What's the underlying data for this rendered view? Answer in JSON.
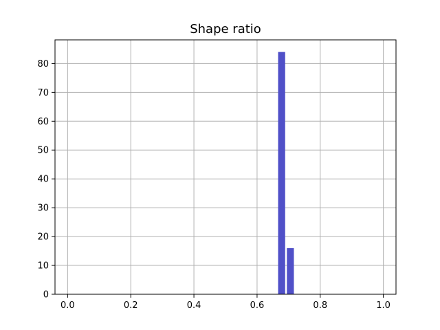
{
  "chart_data": {
    "type": "bar",
    "title": "Shape ratio",
    "xlabel": "",
    "ylabel": "",
    "xlim": [
      -0.04,
      1.04
    ],
    "ylim": [
      0,
      88.2
    ],
    "x_ticks": [
      0.0,
      0.2,
      0.4,
      0.6,
      0.8,
      1.0
    ],
    "x_tick_labels": [
      "0.0",
      "0.2",
      "0.4",
      "0.6",
      "0.8",
      "1.0"
    ],
    "y_ticks": [
      0,
      10,
      20,
      30,
      40,
      50,
      60,
      70,
      80
    ],
    "y_tick_labels": [
      "0",
      "10",
      "20",
      "30",
      "40",
      "50",
      "60",
      "70",
      "80"
    ],
    "grid": true,
    "bar_color": "#5050c8",
    "bars": [
      {
        "x_start": 0.6666,
        "x_end": 0.6889,
        "value": 84
      },
      {
        "x_start": 0.6944,
        "x_end": 0.7166,
        "value": 16
      }
    ]
  }
}
